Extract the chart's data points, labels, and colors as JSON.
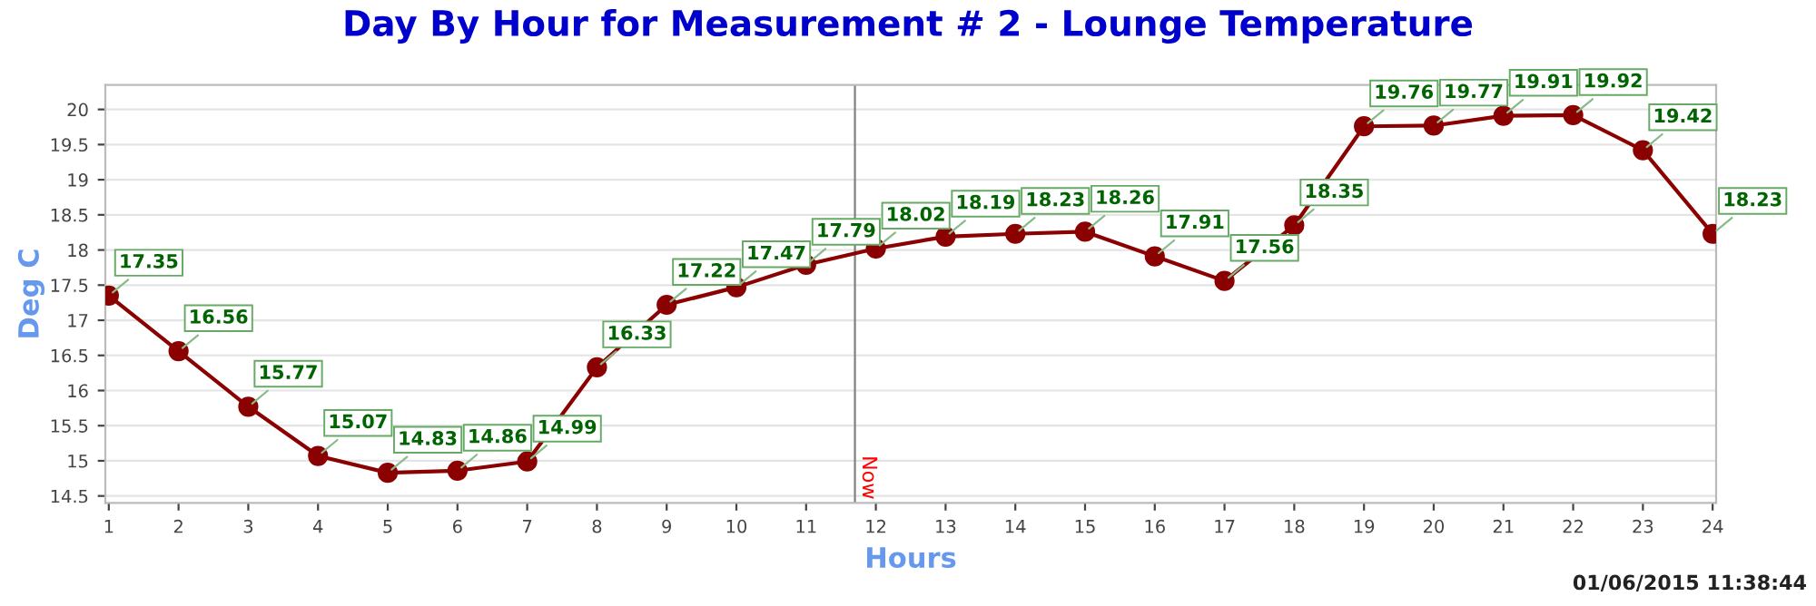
{
  "chart_data": {
    "type": "line",
    "title": "Day By Hour for Measurement # 2 - Lounge Temperature",
    "xlabel": "Hours",
    "ylabel": "Deg C",
    "x": [
      1,
      2,
      3,
      4,
      5,
      6,
      7,
      8,
      9,
      10,
      11,
      12,
      13,
      14,
      15,
      16,
      17,
      18,
      19,
      20,
      21,
      22,
      23,
      24
    ],
    "series": [
      {
        "color": "#8b0000",
        "values": [
          17.35,
          16.56,
          15.77,
          15.07,
          14.83,
          14.86,
          14.99,
          16.33,
          17.22,
          17.47,
          17.79,
          18.02,
          18.19,
          18.23,
          18.26,
          17.91,
          17.56,
          18.35,
          19.76,
          19.77,
          19.91,
          19.92,
          19.42,
          18.23
        ]
      }
    ],
    "xlim": [
      0.95,
      24.05
    ],
    "xticks": [
      1,
      2,
      3,
      4,
      5,
      6,
      7,
      8,
      9,
      10,
      11,
      12,
      13,
      14,
      15,
      16,
      17,
      18,
      19,
      20,
      21,
      22,
      23,
      24
    ],
    "ylim": [
      14.4,
      20.35
    ],
    "yticks": [
      14.5,
      15,
      15.5,
      16,
      16.5,
      17,
      17.5,
      18,
      18.5,
      19,
      19.5,
      20
    ],
    "ref_lines": [
      {
        "axis": "x",
        "value": 11.7,
        "label": "Now",
        "color": "#808080"
      }
    ],
    "annotations": [
      "01/06/2015 11:38:44"
    ],
    "grid": "y",
    "marker": "circle",
    "line_style": "solid",
    "data_labels": true
  }
}
